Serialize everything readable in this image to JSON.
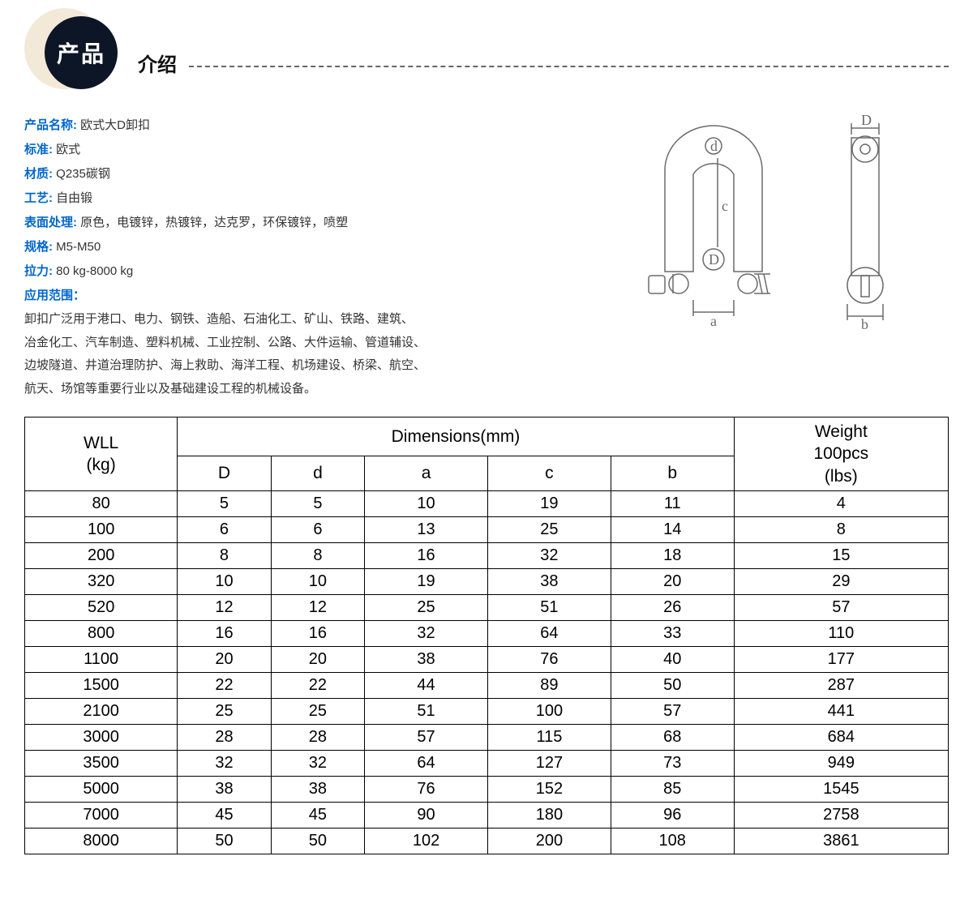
{
  "header": {
    "badge_text": "产品",
    "subtitle": "介绍"
  },
  "specs": {
    "items": [
      {
        "label": "产品名称:",
        "value": " 欧式大D卸扣"
      },
      {
        "label": "标准:",
        "value": " 欧式"
      },
      {
        "label": "材质:",
        "value": " Q235碳钢"
      },
      {
        "label": "工艺:",
        "value": " 自由锻"
      },
      {
        "label": "表面处理:",
        "value": " 原色，电镀锌，热镀锌，达克罗，环保镀锌，喷塑"
      },
      {
        "label": "规格:",
        "value": " M5-M50"
      },
      {
        "label": "拉力:",
        "value": " 80 kg-8000 kg"
      }
    ],
    "app_label": "应用范围：",
    "app_lines": [
      "卸扣广泛用于港口、电力、钢铁、造船、石油化工、矿山、铁路、建筑、",
      "冶金化工、汽车制造、塑料机械、工业控制、公路、大件运输、管道辅设、",
      "边坡隧道、井道治理防护、海上救助、海洋工程、机场建设、桥梁、航空、",
      "航天、场馆等重要行业以及基础建设工程的机械设备。"
    ]
  },
  "diagram": {
    "labels": {
      "D_upper": "D",
      "d_lower": "d",
      "a": "a",
      "b": "b",
      "c": "c"
    },
    "stroke": "#6b6b6b",
    "font": "18px serif"
  },
  "table": {
    "header_wll": "WLL\n(kg)",
    "header_dim": "Dimensions(mm)",
    "header_weight": "Weight\n100pcs\n(lbs)",
    "dim_cols": [
      "D",
      "d",
      "a",
      "c",
      "b"
    ],
    "rows": [
      [
        "80",
        "5",
        "5",
        "10",
        "19",
        "11",
        "4"
      ],
      [
        "100",
        "6",
        "6",
        "13",
        "25",
        "14",
        "8"
      ],
      [
        "200",
        "8",
        "8",
        "16",
        "32",
        "18",
        "15"
      ],
      [
        "320",
        "10",
        "10",
        "19",
        "38",
        "20",
        "29"
      ],
      [
        "520",
        "12",
        "12",
        "25",
        "51",
        "26",
        "57"
      ],
      [
        "800",
        "16",
        "16",
        "32",
        "64",
        "33",
        "110"
      ],
      [
        "1100",
        "20",
        "20",
        "38",
        "76",
        "40",
        "177"
      ],
      [
        "1500",
        "22",
        "22",
        "44",
        "89",
        "50",
        "287"
      ],
      [
        "2100",
        "25",
        "25",
        "51",
        "100",
        "57",
        "441"
      ],
      [
        "3000",
        "28",
        "28",
        "57",
        "115",
        "68",
        "684"
      ],
      [
        "3500",
        "32",
        "32",
        "64",
        "127",
        "73",
        "949"
      ],
      [
        "5000",
        "38",
        "38",
        "76",
        "152",
        "85",
        "1545"
      ],
      [
        "7000",
        "45",
        "45",
        "90",
        "180",
        "96",
        "2758"
      ],
      [
        "8000",
        "50",
        "50",
        "102",
        "200",
        "108",
        "3861"
      ]
    ]
  },
  "colors": {
    "label_blue": "#0066cc",
    "badge_outer": "#f2e9d9",
    "badge_inner": "#0d1626",
    "text": "#333333",
    "border": "#000000"
  }
}
